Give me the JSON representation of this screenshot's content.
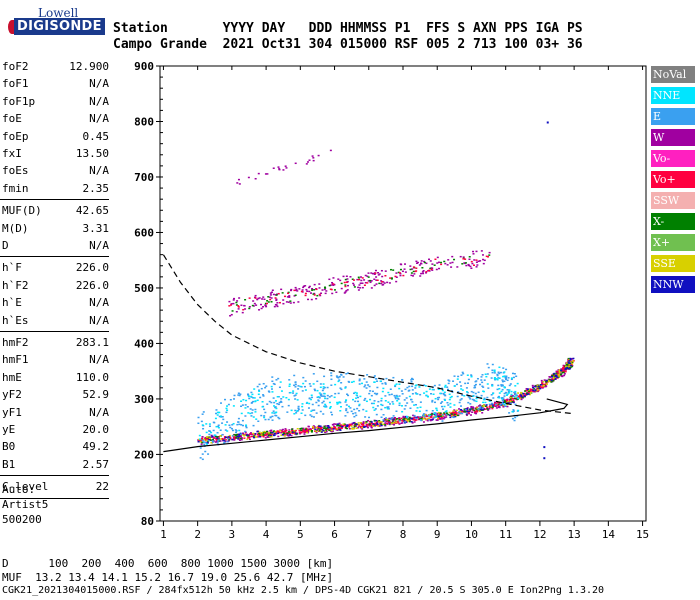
{
  "logo": {
    "top": "Lowell",
    "main": "DIGISONDE"
  },
  "header": {
    "row1": "Station       YYYY DAY   DDD HHMMSS P1  FFS S AXN PPS IGA PS",
    "row2": "Campo Grande  2021 Oct31 304 015000 RSF 005 2 713 100 03+ 36"
  },
  "params": [
    {
      "group": [
        {
          "k": "foF2",
          "v": "12.900"
        },
        {
          "k": "foF1",
          "v": "N/A"
        },
        {
          "k": "foF1p",
          "v": "N/A"
        },
        {
          "k": "foE",
          "v": "N/A"
        },
        {
          "k": "foEp",
          "v": "0.45"
        },
        {
          "k": "fxI",
          "v": "13.50"
        },
        {
          "k": "foEs",
          "v": "N/A"
        },
        {
          "k": "fmin",
          "v": "2.35"
        }
      ]
    },
    {
      "group": [
        {
          "k": "MUF(D)",
          "v": "42.65"
        },
        {
          "k": "M(D)",
          "v": "3.31"
        },
        {
          "k": "D",
          "v": "N/A"
        }
      ]
    },
    {
      "group": [
        {
          "k": "h`F",
          "v": "226.0"
        },
        {
          "k": "h`F2",
          "v": "226.0"
        },
        {
          "k": "h`E",
          "v": "N/A"
        },
        {
          "k": "h`Es",
          "v": "N/A"
        }
      ]
    },
    {
      "group": [
        {
          "k": "hmF2",
          "v": "283.1"
        },
        {
          "k": "hmF1",
          "v": "N/A"
        },
        {
          "k": "hmE",
          "v": "110.0"
        },
        {
          "k": "yF2",
          "v": "52.9"
        },
        {
          "k": "yF1",
          "v": "N/A"
        },
        {
          "k": "yE",
          "v": "20.0"
        },
        {
          "k": "B0",
          "v": "49.2"
        },
        {
          "k": "B1",
          "v": "2.57"
        }
      ]
    },
    {
      "group": [
        {
          "k": "C-level",
          "v": "22"
        }
      ]
    }
  ],
  "side_notes": [
    "Auto:",
    "Artist5",
    "500200"
  ],
  "legend": [
    {
      "label": "NoVal",
      "color": "#808080"
    },
    {
      "label": "NNE",
      "color": "#00e5ff"
    },
    {
      "label": "E",
      "color": "#3aa0f0"
    },
    {
      "label": "W",
      "color": "#a000a0"
    },
    {
      "label": "Vo-",
      "color": "#ff20c0"
    },
    {
      "label": "Vo+",
      "color": "#ff0040"
    },
    {
      "label": "SSW",
      "color": "#f4b0b0"
    },
    {
      "label": "X-",
      "color": "#008000"
    },
    {
      "label": "X+",
      "color": "#70c050"
    },
    {
      "label": "SSE",
      "color": "#d8d000"
    },
    {
      "label": "NNW",
      "color": "#1010c0"
    }
  ],
  "bottom": {
    "row1": "D      100  200  400  600  800 1000 1500 3000 [km]",
    "row2": "MUF  13.2 13.4 14.1 15.2 16.7 19.0 25.6 42.7 [MHz]",
    "row3": "CGK21_2021304015000.RSF / 284fx512h 50 kHz 2.5 km / DPS-4D CGK21 821 / 20.5 S 305.0 E Ion2Png 1.3.20"
  },
  "chart_data": {
    "type": "scatter",
    "title": "",
    "xlabel": "",
    "ylabel": "",
    "xlim": [
      0.9,
      15.1
    ],
    "ylim": [
      80,
      900
    ],
    "x_ticks": [
      1,
      2,
      3,
      4,
      5,
      6,
      7,
      8,
      9,
      10,
      11,
      12,
      13,
      14,
      15
    ],
    "y_ticks": [
      80,
      200,
      300,
      400,
      500,
      600,
      700,
      800,
      900
    ],
    "grid": false,
    "legend_position": "right",
    "series": [
      {
        "name": "Vo+",
        "trace": [
          [
            2,
            226
          ],
          [
            3,
            232
          ],
          [
            4,
            238
          ],
          [
            5,
            244
          ],
          [
            6,
            250
          ],
          [
            7,
            256
          ],
          [
            8,
            263
          ],
          [
            9,
            270
          ],
          [
            10,
            280
          ],
          [
            11,
            295
          ],
          [
            11.8,
            318
          ],
          [
            12.4,
            340
          ],
          [
            12.8,
            360
          ],
          [
            12.9,
            372
          ]
        ]
      },
      {
        "name": "E",
        "trace": [
          [
            2.0,
            230
          ],
          [
            3,
            270
          ],
          [
            4,
            300
          ],
          [
            5,
            305
          ],
          [
            6,
            310
          ],
          [
            7,
            305
          ],
          [
            8,
            300
          ],
          [
            9,
            295
          ],
          [
            10,
            320
          ],
          [
            10.8,
            330
          ],
          [
            11.3,
            300
          ]
        ]
      },
      {
        "name": "W",
        "trace": [
          [
            2.8,
            465
          ],
          [
            4,
            480
          ],
          [
            5,
            490
          ],
          [
            6,
            505
          ],
          [
            7,
            515
          ],
          [
            8,
            530
          ],
          [
            9,
            545
          ],
          [
            10.5,
            555
          ]
        ]
      },
      {
        "name": "NNW",
        "trace": [
          [
            12.1,
            215
          ],
          [
            12.1,
            195
          ],
          [
            12.2,
            800
          ]
        ]
      }
    ],
    "profile_curve": [
      [
        1,
        205
      ],
      [
        2,
        214
      ],
      [
        3,
        220
      ],
      [
        4,
        226
      ],
      [
        5,
        232
      ],
      [
        6,
        238
      ],
      [
        7,
        243
      ],
      [
        8,
        249
      ],
      [
        9,
        255
      ],
      [
        10,
        262
      ],
      [
        11,
        268
      ],
      [
        12,
        275
      ],
      [
        12.7,
        283
      ]
    ],
    "dashed_curve": [
      [
        1,
        560
      ],
      [
        1.5,
        510
      ],
      [
        2,
        470
      ],
      [
        2.5,
        440
      ],
      [
        3,
        415
      ],
      [
        4,
        385
      ],
      [
        5,
        365
      ],
      [
        6,
        350
      ],
      [
        7,
        340
      ],
      [
        8,
        330
      ],
      [
        9,
        320
      ],
      [
        10,
        305
      ],
      [
        11,
        292
      ],
      [
        12,
        280
      ],
      [
        12.9,
        274
      ]
    ]
  }
}
